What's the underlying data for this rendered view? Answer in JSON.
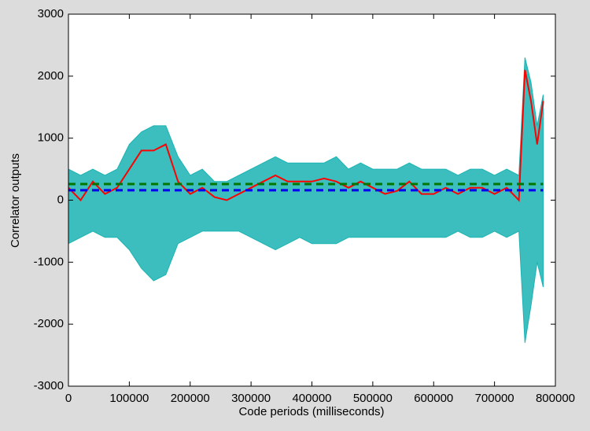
{
  "chart_data": {
    "type": "line",
    "x_label": "Code periods (milliseconds)",
    "y_label": "Correlator outputs",
    "xlim": [
      0,
      800000
    ],
    "ylim": [
      -3000,
      3000
    ],
    "xticks": [
      0,
      100000,
      200000,
      300000,
      400000,
      500000,
      600000,
      700000,
      800000
    ],
    "yticks": [
      -3000,
      -2000,
      -1000,
      0,
      1000,
      2000,
      3000
    ],
    "x": [
      0,
      20000,
      40000,
      60000,
      80000,
      100000,
      120000,
      140000,
      160000,
      180000,
      200000,
      220000,
      240000,
      260000,
      280000,
      300000,
      320000,
      340000,
      360000,
      380000,
      400000,
      420000,
      440000,
      460000,
      480000,
      500000,
      520000,
      540000,
      560000,
      580000,
      600000,
      620000,
      640000,
      660000,
      680000,
      700000,
      720000,
      740000,
      750000,
      760000,
      770000,
      780000
    ],
    "series": [
      {
        "kind": "band",
        "color": "#1bb3b3",
        "values": [
          500,
          400,
          500,
          400,
          500,
          900,
          1100,
          1200,
          1200,
          700,
          400,
          500,
          300,
          300,
          400,
          500,
          600,
          700,
          600,
          600,
          600,
          600,
          700,
          500,
          600,
          500,
          500,
          500,
          600,
          500,
          500,
          500,
          400,
          500,
          500,
          400,
          500,
          400,
          2300,
          1900,
          1200,
          1700
        ],
        "lower": [
          -700,
          -600,
          -500,
          -600,
          -600,
          -800,
          -1100,
          -1300,
          -1200,
          -700,
          -600,
          -500,
          -500,
          -500,
          -500,
          -600,
          -700,
          -800,
          -700,
          -600,
          -700,
          -700,
          -700,
          -600,
          -600,
          -600,
          -600,
          -600,
          -600,
          -600,
          -600,
          -600,
          -500,
          -600,
          -600,
          -500,
          -600,
          -500,
          -2300,
          -1700,
          -1000,
          -1400
        ]
      },
      {
        "kind": "line",
        "color": "#ff0000",
        "values": [
          200,
          0,
          300,
          100,
          200,
          500,
          800,
          800,
          900,
          300,
          100,
          200,
          50,
          0,
          100,
          200,
          300,
          400,
          300,
          300,
          300,
          350,
          300,
          200,
          300,
          200,
          100,
          150,
          300,
          100,
          100,
          200,
          100,
          200,
          200,
          100,
          200,
          0,
          2100,
          1600,
          900,
          1600
        ]
      },
      {
        "kind": "dashed",
        "color": "#007700",
        "x": [
          0,
          780000
        ],
        "values": [
          260,
          260
        ]
      },
      {
        "kind": "dashed",
        "color": "#0000ee",
        "x": [
          0,
          780000
        ],
        "values": [
          160,
          160
        ]
      }
    ]
  }
}
